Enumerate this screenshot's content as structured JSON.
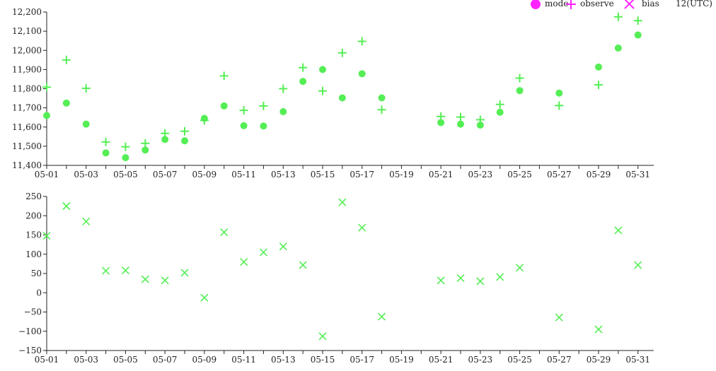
{
  "colors": {
    "series": "#55ee55",
    "legend": "#ff22ff",
    "axis": "#222222",
    "background": "#ffffff"
  },
  "legend": {
    "items": [
      {
        "label": "mode",
        "marker": "circle"
      },
      {
        "label": "observe",
        "marker": "plus"
      },
      {
        "label": "bias",
        "marker": "cross"
      }
    ],
    "time": "12(UTC)",
    "placement": "top-right"
  },
  "chart_data": [
    {
      "type": "scatter",
      "title": "",
      "xlabel": "",
      "ylabel": "",
      "x_tick_labels": [
        "05-01",
        "05-03",
        "05-05",
        "05-07",
        "05-09",
        "05-11",
        "05-13",
        "05-15",
        "05-17",
        "05-19",
        "05-21",
        "05-23",
        "05-25",
        "05-27",
        "05-29",
        "05-31"
      ],
      "y_tick_labels": [
        "11,400",
        "11,500",
        "11,600",
        "11,700",
        "11,800",
        "11,900",
        "12,000",
        "12,100",
        "12,200"
      ],
      "xlim": [
        1,
        31.8
      ],
      "ylim": [
        11400,
        12200
      ],
      "series": [
        {
          "name": "mode",
          "marker": "circle",
          "x": [
            1,
            2,
            3,
            4,
            5,
            6,
            7,
            8,
            9,
            10,
            11,
            12,
            13,
            14,
            15,
            16,
            17,
            18,
            21,
            22,
            23,
            24,
            25,
            27,
            29,
            30,
            31
          ],
          "values": [
            11660,
            11725,
            11615,
            11465,
            11440,
            11480,
            11535,
            11528,
            11645,
            11710,
            11607,
            11605,
            11680,
            11838,
            11900,
            11752,
            11878,
            11752,
            11623,
            11615,
            11610,
            11677,
            11790,
            11777,
            11913,
            12012,
            12080
          ]
        },
        {
          "name": "observe",
          "marker": "plus",
          "x": [
            1,
            2,
            3,
            4,
            5,
            6,
            7,
            8,
            9,
            10,
            11,
            12,
            13,
            14,
            15,
            16,
            17,
            18,
            21,
            22,
            23,
            24,
            25,
            27,
            29,
            30,
            31
          ],
          "values": [
            11808,
            11950,
            11802,
            11522,
            11497,
            11515,
            11567,
            11578,
            11635,
            11867,
            11687,
            11710,
            11800,
            11910,
            11788,
            11987,
            12047,
            11690,
            11655,
            11652,
            11638,
            11718,
            11855,
            11712,
            11820,
            12175,
            12155
          ]
        }
      ]
    },
    {
      "type": "scatter",
      "title": "",
      "xlabel": "",
      "ylabel": "",
      "x_tick_labels": [
        "05-01",
        "05-03",
        "05-05",
        "05-07",
        "05-09",
        "05-11",
        "05-13",
        "05-15",
        "05-17",
        "05-19",
        "05-21",
        "05-23",
        "05-25",
        "05-27",
        "05-29",
        "05-31"
      ],
      "y_tick_labels": [
        "250",
        "200",
        "150",
        "100",
        "50",
        "0",
        "−50",
        "−100",
        "−150"
      ],
      "xlim": [
        1,
        31.8
      ],
      "ylim": [
        -150,
        250
      ],
      "series": [
        {
          "name": "bias",
          "marker": "cross",
          "x": [
            1,
            2,
            3,
            4,
            5,
            6,
            7,
            8,
            9,
            10,
            11,
            12,
            13,
            14,
            15,
            16,
            17,
            18,
            21,
            22,
            23,
            24,
            25,
            27,
            29,
            30,
            31
          ],
          "values": [
            148,
            225,
            185,
            57,
            58,
            35,
            32,
            52,
            -13,
            157,
            80,
            105,
            120,
            72,
            -113,
            235,
            169,
            -62,
            32,
            38,
            30,
            41,
            65,
            -64,
            -95,
            162,
            72
          ]
        }
      ]
    }
  ]
}
